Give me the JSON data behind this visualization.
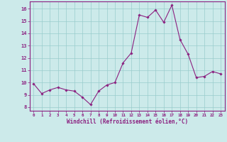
{
  "x": [
    0,
    1,
    2,
    3,
    4,
    5,
    6,
    7,
    8,
    9,
    10,
    11,
    12,
    13,
    14,
    15,
    16,
    17,
    18,
    19,
    20,
    21,
    22,
    23
  ],
  "y": [
    9.9,
    9.1,
    9.4,
    9.6,
    9.4,
    9.3,
    8.8,
    8.2,
    9.3,
    9.8,
    10.0,
    11.6,
    12.4,
    15.5,
    15.3,
    15.9,
    14.9,
    16.3,
    13.5,
    12.3,
    10.4,
    10.5,
    10.9,
    10.7
  ],
  "line_color": "#8b2080",
  "marker": "D",
  "marker_size": 1.8,
  "bg_color": "#cceaea",
  "grid_color": "#99cccc",
  "xlabel": "Windchill (Refroidissement éolien,°C)",
  "xlabel_color": "#8b2080",
  "ylabel_ticks": [
    8,
    9,
    10,
    11,
    12,
    13,
    14,
    15,
    16
  ],
  "xlim": [
    -0.5,
    23.5
  ],
  "ylim": [
    7.7,
    16.6
  ],
  "xtick_labels": [
    "0",
    "1",
    "2",
    "3",
    "4",
    "5",
    "6",
    "7",
    "8",
    "9",
    "10",
    "11",
    "12",
    "13",
    "14",
    "15",
    "16",
    "17",
    "18",
    "19",
    "20",
    "21",
    "22",
    "23"
  ],
  "tick_color": "#8b2080",
  "spine_color": "#8b2080"
}
